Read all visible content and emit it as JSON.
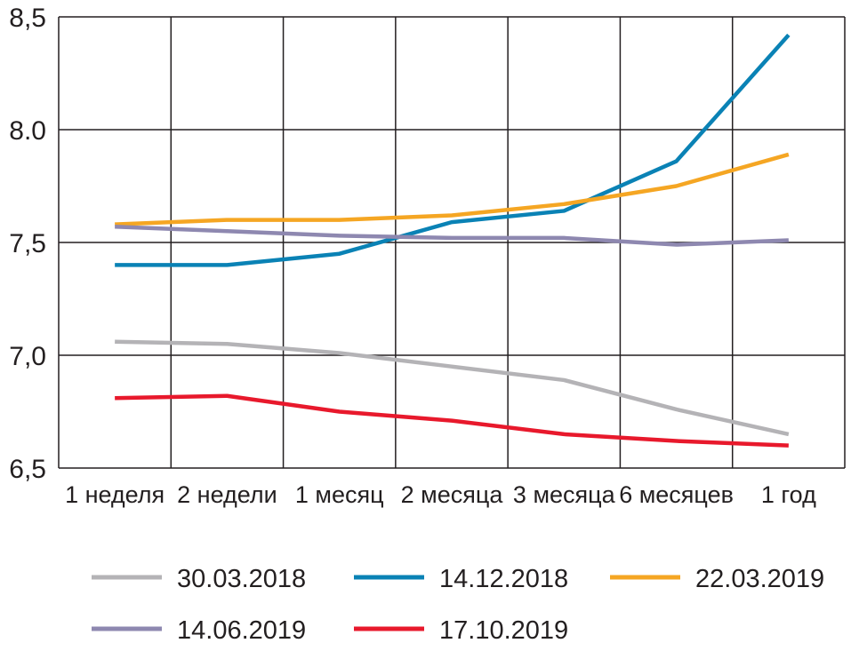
{
  "chart_data": {
    "type": "line",
    "title": "",
    "xlabel": "",
    "ylabel": "",
    "categories": [
      "1 неделя",
      "2 недели",
      "1 месяц",
      "2 месяца",
      "3 месяца",
      "6 месяцев",
      "1 год"
    ],
    "ylim": [
      6.5,
      8.5
    ],
    "yticks": [
      6.5,
      7.0,
      7.5,
      8.0,
      8.5
    ],
    "ytick_labels": [
      "6,5",
      "7,0",
      "7,5",
      "8.0",
      "8,5"
    ],
    "grid": true,
    "legend_position": "bottom",
    "series": [
      {
        "name": "30.03.2018",
        "color": "#b4b3b6",
        "values": [
          7.06,
          7.05,
          7.01,
          6.95,
          6.89,
          6.76,
          6.65
        ]
      },
      {
        "name": "14.12.2018",
        "color": "#0a82b5",
        "values": [
          7.4,
          7.4,
          7.45,
          7.59,
          7.64,
          7.86,
          8.42
        ]
      },
      {
        "name": "22.03.2019",
        "color": "#f5a623",
        "values": [
          7.58,
          7.6,
          7.6,
          7.62,
          7.67,
          7.75,
          7.89
        ]
      },
      {
        "name": "14.06.2019",
        "color": "#8e88b0",
        "values": [
          7.57,
          7.55,
          7.53,
          7.52,
          7.52,
          7.49,
          7.51
        ]
      },
      {
        "name": "17.10.2019",
        "color": "#e8192c",
        "values": [
          6.81,
          6.82,
          6.75,
          6.71,
          6.65,
          6.62,
          6.6
        ]
      }
    ]
  }
}
